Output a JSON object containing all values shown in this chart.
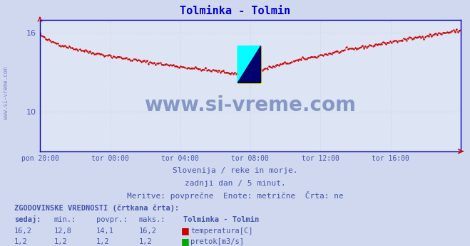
{
  "title": "Tolminka - Tolmin",
  "title_color": "#0000cc",
  "bg_color": "#d0d8f0",
  "plot_bg_color": "#dde4f4",
  "grid_color": "#c8c8d8",
  "x_labels": [
    "pon 20:00",
    "tor 00:00",
    "tor 04:00",
    "tor 08:00",
    "tor 12:00",
    "tor 16:00"
  ],
  "y_min": 7.0,
  "y_max": 17.0,
  "y_ticks": [
    10,
    16
  ],
  "line_color": "#cc0000",
  "axis_color": "#0000bb",
  "subtitle1": "Slovenija / reke in morje.",
  "subtitle2": "zadnji dan / 5 minut.",
  "subtitle3": "Meritve: povprečne  Enote: metrične  Črta: ne",
  "subtitle_color": "#4455aa",
  "table_header": "ZGODOVINSKE VREDNOSTI (črtkana črta):",
  "col_headers": [
    "sedaj:",
    "min.:",
    "povpr.:",
    "maks.:",
    "Tolminka - Tolmin"
  ],
  "row1": [
    "16,2",
    "12,8",
    "14,1",
    "16,2",
    "temperatura[C]"
  ],
  "row2": [
    "1,2",
    "1,2",
    "1,2",
    "1,2",
    "pretok[m3/s]"
  ],
  "temp_color": "#cc0000",
  "flow_color": "#00aa00",
  "watermark_color": "#1a3a8a",
  "watermark_alpha": 0.45,
  "n_points": 288
}
